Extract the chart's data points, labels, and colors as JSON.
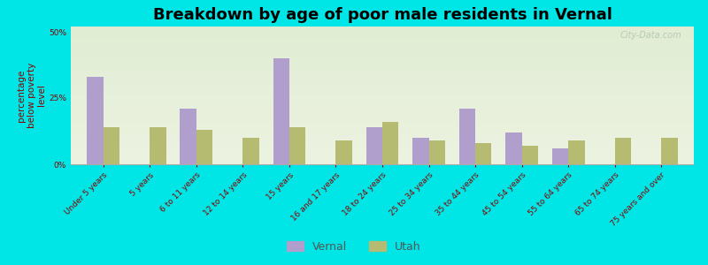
{
  "title": "Breakdown by age of poor male residents in Vernal",
  "ylabel": "percentage\nbelow poverty\nlevel",
  "categories": [
    "Under 5 years",
    "5 years",
    "6 to 11 years",
    "12 to 14 years",
    "15 years",
    "16 and 17 years",
    "18 to 24 years",
    "25 to 34 years",
    "35 to 44 years",
    "45 to 54 years",
    "55 to 64 years",
    "65 to 74 years",
    "75 years and over"
  ],
  "vernal_values": [
    33,
    0,
    21,
    0,
    40,
    0,
    14,
    10,
    21,
    12,
    6,
    0,
    0
  ],
  "utah_values": [
    14,
    14,
    13,
    10,
    14,
    9,
    16,
    9,
    8,
    7,
    9,
    10,
    10
  ],
  "vernal_color": "#b09fcc",
  "utah_color": "#b5bc72",
  "background_color": "#00e5e5",
  "plot_bg_color": "#e8f0d8",
  "ylim": [
    0,
    52
  ],
  "yticks": [
    0,
    25,
    50
  ],
  "ytick_labels": [
    "0%",
    "25%",
    "50%"
  ],
  "title_fontsize": 13,
  "axis_label_fontsize": 7.5,
  "tick_label_fontsize": 6.5,
  "legend_fontsize": 9,
  "bar_width": 0.35,
  "watermark": "City-Data.com"
}
